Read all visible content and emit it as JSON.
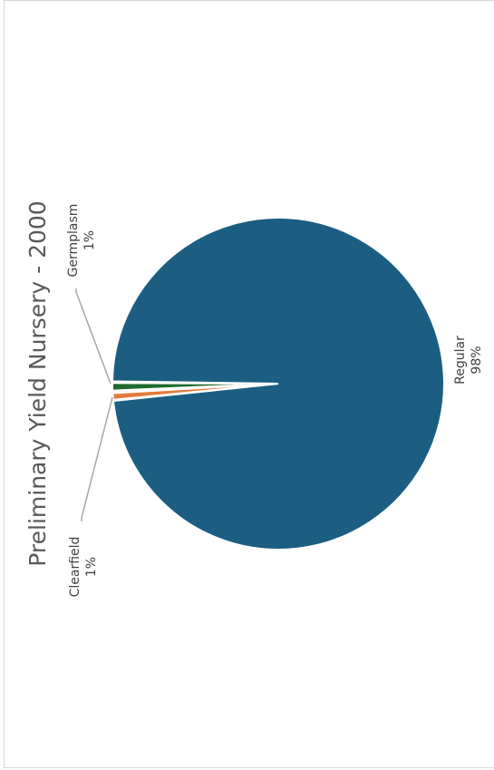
{
  "chart_data": {
    "type": "pie",
    "title": "Preliminary Yield Nursery - 2000",
    "slices": [
      {
        "name": "Regular",
        "value": 98,
        "label": "98%",
        "color": "#1b5e82"
      },
      {
        "name": "Germplasm",
        "value": 1,
        "label": "1%",
        "color": "#1e6b2c"
      },
      {
        "name": "Clearfield",
        "value": 1,
        "label": "1%",
        "color": "#e37a3c"
      }
    ],
    "legend": "none"
  }
}
